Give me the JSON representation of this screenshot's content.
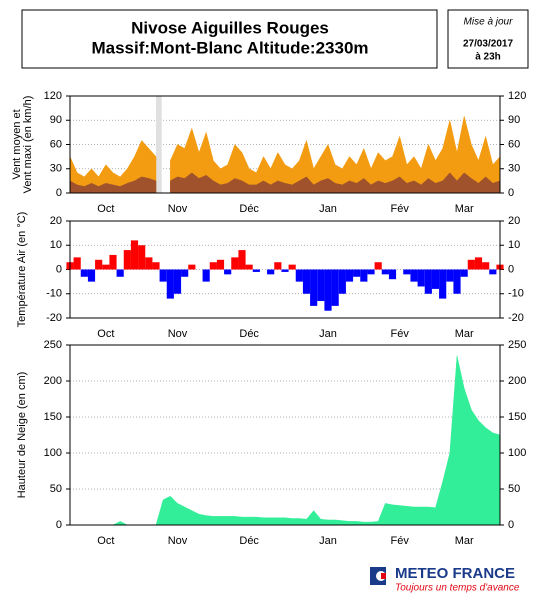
{
  "header": {
    "title": "Nivose Aiguilles Rouges",
    "subtitle": "Massif:Mont-Blanc Altitude:2330m",
    "update_label": "Mise à jour",
    "update_date": "27/03/2017",
    "update_time": "à 23h"
  },
  "footer": {
    "brand": "METEO FRANCE",
    "slogan": "Toujours un temps d'avance"
  },
  "chart_data": [
    {
      "type": "area",
      "ylabel": [
        "Vent moyen et",
        "Vent maxi (en km/h)"
      ],
      "categories": [
        null,
        null,
        null,
        null,
        null,
        "Oct",
        null,
        null,
        null,
        null,
        null,
        null,
        null,
        null,
        null,
        "Nov",
        null,
        null,
        null,
        null,
        null,
        null,
        null,
        null,
        null,
        "Déc",
        null,
        null,
        null,
        null,
        null,
        null,
        null,
        null,
        null,
        null,
        "Jan",
        null,
        null,
        null,
        null,
        null,
        null,
        null,
        null,
        null,
        "Fév",
        null,
        null,
        null,
        null,
        null,
        null,
        null,
        null,
        "Mar",
        null,
        null,
        null,
        null,
        null
      ],
      "series": [
        {
          "color": "#f39c12",
          "values": [
            45,
            25,
            20,
            30,
            20,
            35,
            25,
            20,
            30,
            45,
            65,
            55,
            45,
            null,
            40,
            60,
            55,
            80,
            50,
            75,
            40,
            30,
            35,
            60,
            50,
            30,
            25,
            45,
            30,
            50,
            35,
            30,
            40,
            65,
            30,
            45,
            60,
            35,
            30,
            45,
            35,
            55,
            30,
            50,
            40,
            45,
            70,
            35,
            45,
            30,
            60,
            40,
            55,
            90,
            50,
            95,
            60,
            40,
            70,
            35,
            45
          ]
        },
        {
          "color": "#a0522d",
          "values": [
            15,
            10,
            8,
            12,
            8,
            12,
            10,
            8,
            12,
            15,
            20,
            18,
            15,
            null,
            15,
            20,
            18,
            25,
            18,
            22,
            15,
            10,
            12,
            18,
            15,
            10,
            10,
            15,
            10,
            15,
            12,
            10,
            15,
            20,
            10,
            15,
            18,
            12,
            10,
            15,
            12,
            18,
            10,
            15,
            12,
            15,
            20,
            12,
            15,
            10,
            18,
            12,
            15,
            25,
            15,
            25,
            18,
            12,
            20,
            12,
            15
          ]
        }
      ],
      "ylim": [
        0,
        120
      ],
      "yticks": [
        0,
        30,
        60,
        90,
        120
      ],
      "grid": true,
      "gap_color": "#e0e0e0"
    },
    {
      "type": "bar",
      "ylabel": [
        "Température Air (en °C)"
      ],
      "categories": [
        null,
        null,
        null,
        null,
        null,
        "Oct",
        null,
        null,
        null,
        null,
        null,
        null,
        null,
        null,
        null,
        "Nov",
        null,
        null,
        null,
        null,
        null,
        null,
        null,
        null,
        null,
        "Déc",
        null,
        null,
        null,
        null,
        null,
        null,
        null,
        null,
        null,
        null,
        "Jan",
        null,
        null,
        null,
        null,
        null,
        null,
        null,
        null,
        null,
        "Fév",
        null,
        null,
        null,
        null,
        null,
        null,
        null,
        null,
        "Mar",
        null,
        null,
        null,
        null,
        null
      ],
      "values": [
        3,
        5,
        -3,
        -5,
        4,
        2,
        6,
        -3,
        8,
        12,
        10,
        5,
        3,
        -5,
        -12,
        -10,
        -3,
        2,
        0,
        -5,
        3,
        4,
        -2,
        5,
        8,
        2,
        -1,
        0,
        -2,
        3,
        -1,
        2,
        -5,
        -10,
        -15,
        -13,
        -17,
        -15,
        -10,
        -5,
        -3,
        -5,
        -2,
        3,
        -2,
        -4,
        0,
        -2,
        -5,
        -7,
        -10,
        -8,
        -12,
        -5,
        -10,
        -3,
        4,
        5,
        3,
        -2,
        2
      ],
      "positive_color": "#ff0000",
      "negative_color": "#0000ff",
      "ylim": [
        -20,
        20
      ],
      "yticks": [
        -20,
        -10,
        0,
        10,
        20
      ],
      "grid": true
    },
    {
      "type": "area",
      "ylabel": [
        "Hauteur de Neige (en cm)"
      ],
      "categories": [
        null,
        null,
        null,
        null,
        null,
        "Oct",
        null,
        null,
        null,
        null,
        null,
        null,
        null,
        null,
        null,
        "Nov",
        null,
        null,
        null,
        null,
        null,
        null,
        null,
        null,
        null,
        "Déc",
        null,
        null,
        null,
        null,
        null,
        null,
        null,
        null,
        null,
        null,
        "Jan",
        null,
        null,
        null,
        null,
        null,
        null,
        null,
        null,
        null,
        "Fév",
        null,
        null,
        null,
        null,
        null,
        null,
        null,
        null,
        "Mar",
        null,
        null,
        null,
        null,
        null
      ],
      "series": [
        {
          "color": "#33ee99",
          "values": [
            0,
            0,
            0,
            0,
            0,
            0,
            0,
            5,
            0,
            0,
            0,
            0,
            0,
            35,
            40,
            30,
            25,
            20,
            15,
            13,
            12,
            12,
            12,
            12,
            11,
            11,
            11,
            10,
            10,
            10,
            10,
            9,
            9,
            8,
            20,
            8,
            7,
            7,
            6,
            5,
            5,
            4,
            4,
            5,
            30,
            28,
            27,
            26,
            25,
            25,
            25,
            24,
            60,
            100,
            235,
            190,
            160,
            145,
            135,
            128,
            125
          ]
        }
      ],
      "ylim": [
        0,
        250
      ],
      "yticks": [
        0,
        50,
        100,
        150,
        200,
        250
      ],
      "grid": true
    }
  ]
}
